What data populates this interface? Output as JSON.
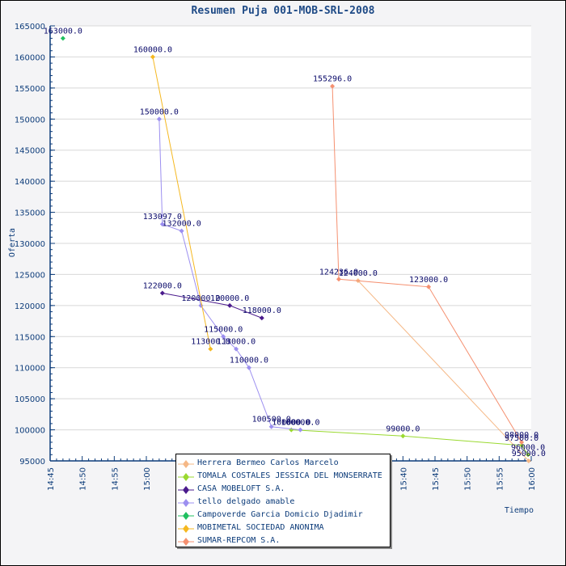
{
  "chart_data": {
    "type": "line",
    "title": "Resumen Puja 001-MOB-SRL-2008",
    "xlabel": "Tiempo",
    "ylabel": "Oferta",
    "xlim": [
      "14:45",
      "16:00"
    ],
    "ylim": [
      95000,
      165000
    ],
    "x_ticks": [
      "14:45",
      "14:50",
      "14:55",
      "15:00",
      "15:05",
      "15:10",
      "15:15",
      "15:20",
      "15:25",
      "15:30",
      "15:35",
      "15:40",
      "15:45",
      "15:50",
      "15:55",
      "16:00"
    ],
    "y_ticks": [
      95000,
      100000,
      105000,
      110000,
      115000,
      120000,
      125000,
      130000,
      135000,
      140000,
      145000,
      150000,
      155000,
      160000,
      165000
    ],
    "grid": true,
    "legend_position": "bottom-center",
    "series": [
      {
        "name": "Herrera Bermeo Carlos Marcelo",
        "color": "#f5b886",
        "points": [
          [
            "15:33",
            124000
          ],
          [
            "15:59.6",
            95000
          ]
        ],
        "labels": [
          "124000.0",
          "95000.0"
        ]
      },
      {
        "name": "TOMALA COSTALES JESSICA DEL MONSERRATE",
        "color": "#9ad930",
        "points": [
          [
            "15:22.6",
            100000
          ],
          [
            "15:40",
            99000
          ],
          [
            "15:58.5",
            97500
          ],
          [
            "15:59.5",
            96000
          ]
        ],
        "labels": [
          "100000.0",
          "99000.0",
          "97500.0",
          "96000.0"
        ]
      },
      {
        "name": "CASA MOBELOFT S.A.",
        "color": "#4a1a8c",
        "points": [
          [
            "15:02.5",
            122000
          ],
          [
            "15:13",
            120000
          ],
          [
            "15:18",
            118000
          ]
        ],
        "labels": [
          "122000.0",
          "120000.0",
          "118000.0"
        ]
      },
      {
        "name": "tello delgado amable",
        "color": "#9c8ff0",
        "points": [
          [
            "15:02",
            150000
          ],
          [
            "15:02.5",
            133097
          ],
          [
            "15:05.5",
            132000
          ],
          [
            "15:08.5",
            120000
          ],
          [
            "15:12",
            115000
          ],
          [
            "15:14",
            113000
          ],
          [
            "15:16",
            110000
          ],
          [
            "15:19.5",
            100500
          ],
          [
            "15:24",
            100000
          ]
        ],
        "labels": [
          "150000.0",
          "133097.0",
          "132000.0",
          "120000.0",
          "115000.0",
          "113000.0",
          "110000.0",
          "100500.0",
          "100000.0"
        ]
      },
      {
        "name": "Campoverde Garcia Domicio Djadimir",
        "color": "#20c060",
        "points": [
          [
            "14:47",
            163000
          ]
        ],
        "labels": [
          "163000.0"
        ]
      },
      {
        "name": "MOBIMETAL SOCIEDAD ANONIMA",
        "color": "#f5b820",
        "points": [
          [
            "15:01",
            160000
          ],
          [
            "15:10",
            113000
          ]
        ],
        "labels": [
          "160000.0",
          "113000.0"
        ]
      },
      {
        "name": "SUMAR-REPCOM S.A.",
        "color": "#f59070",
        "points": [
          [
            "15:29",
            155296
          ],
          [
            "15:30",
            124236
          ],
          [
            "15:44",
            123000
          ],
          [
            "15:58.5",
            98000
          ]
        ],
        "labels": [
          "155296.0",
          "124236.0",
          "123000.0",
          "98000.0"
        ]
      }
    ]
  }
}
